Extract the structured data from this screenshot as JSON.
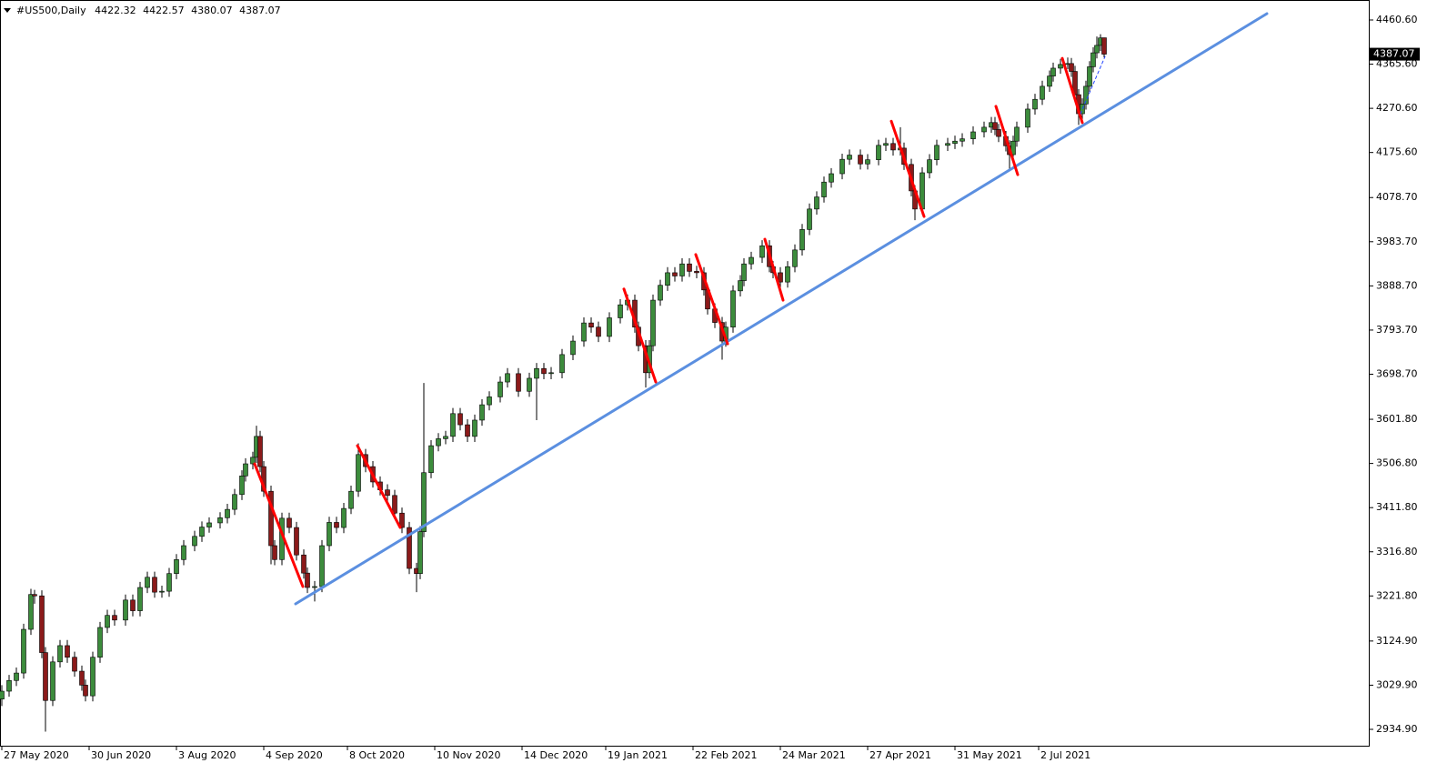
{
  "chart_data": {
    "type": "candlestick",
    "title": "#US500,Daily",
    "up_color": "#3c8c3c",
    "down_color": "#8b1a1a",
    "wick_color": "#000000",
    "grid": false,
    "xlim": [
      -0.5,
      375.75
    ],
    "ylim": [
      2899.7,
      4503.6
    ],
    "yticks": [
      {
        "value": 2934.9,
        "label": "2934.90"
      },
      {
        "value": 3029.9,
        "label": "3029.90"
      },
      {
        "value": 3124.9,
        "label": "3124.90"
      },
      {
        "value": 3221.8,
        "label": "3221.80"
      },
      {
        "value": 3316.8,
        "label": "3316.80"
      },
      {
        "value": 3411.8,
        "label": "3411.80"
      },
      {
        "value": 3506.8,
        "label": "3506.80"
      },
      {
        "value": 3601.8,
        "label": "3601.80"
      },
      {
        "value": 3698.7,
        "label": "3698.70"
      },
      {
        "value": 3793.7,
        "label": "3793.70"
      },
      {
        "value": 3888.7,
        "label": "3888.70"
      },
      {
        "value": 3983.7,
        "label": "3983.70"
      },
      {
        "value": 4078.7,
        "label": "4078.70"
      },
      {
        "value": 4175.6,
        "label": "4175.60"
      },
      {
        "value": 4270.6,
        "label": "4270.60"
      },
      {
        "value": 4365.6,
        "label": "4365.60"
      },
      {
        "value": 4460.6,
        "label": "4460.60"
      }
    ],
    "xticks": [
      {
        "value": 0,
        "label": "27 May 2020"
      },
      {
        "value": 24,
        "label": "30 Jun 2020"
      },
      {
        "value": 48,
        "label": "3 Aug 2020"
      },
      {
        "value": 72,
        "label": "4 Sep 2020"
      },
      {
        "value": 95,
        "label": "8 Oct 2020"
      },
      {
        "value": 119,
        "label": "10 Nov 2020"
      },
      {
        "value": 143,
        "label": "14 Dec 2020"
      },
      {
        "value": 166,
        "label": "19 Jan 2021"
      },
      {
        "value": 190,
        "label": "22 Feb 2021"
      },
      {
        "value": 214,
        "label": "24 Mar 2021"
      },
      {
        "value": 238,
        "label": "27 Apr 2021"
      },
      {
        "value": 262,
        "label": "31 May 2021"
      },
      {
        "value": 285,
        "label": "2 Jul 2021"
      }
    ],
    "x": [
      0,
      2,
      4,
      6,
      8,
      9,
      11,
      12,
      14,
      16,
      18,
      20,
      22,
      23,
      25,
      27,
      29,
      31,
      34,
      36,
      38,
      40,
      42,
      44,
      46,
      48,
      50,
      53,
      55,
      57,
      60,
      62,
      64,
      66,
      67,
      69,
      70,
      71,
      72,
      74,
      75,
      77,
      79,
      81,
      83,
      84,
      86,
      88,
      90,
      92,
      94,
      96,
      98,
      100,
      102,
      104,
      106,
      108,
      110,
      112,
      114,
      115,
      116,
      118,
      120,
      122,
      124,
      126,
      128,
      130,
      132,
      134,
      137,
      139,
      142,
      145,
      147,
      149,
      151,
      154,
      157,
      160,
      162,
      164,
      167,
      170,
      172,
      174,
      175,
      177,
      178,
      179,
      181,
      183,
      185,
      187,
      189,
      191,
      193,
      194,
      196,
      198,
      199,
      201,
      203,
      204,
      206,
      209,
      211,
      212,
      214,
      216,
      218,
      220,
      222,
      224,
      226,
      228,
      231,
      233,
      236,
      238,
      241,
      243,
      245,
      247,
      248,
      250,
      251,
      253,
      255,
      257,
      260,
      262,
      264,
      267,
      270,
      272,
      273,
      274,
      276,
      277,
      278,
      279,
      282,
      284,
      286,
      288,
      289,
      291,
      293,
      294,
      295,
      296,
      297,
      298,
      299,
      300,
      301,
      302,
      303
    ],
    "open": [
      3000,
      3017,
      3040,
      3056,
      3150,
      3225,
      3222,
      3100,
      2997,
      3080,
      3115,
      3090,
      3060,
      3030,
      3007,
      3090,
      3154,
      3180,
      3170,
      3213,
      3190,
      3240,
      3262,
      3230,
      3232,
      3270,
      3300,
      3330,
      3350,
      3370,
      3379,
      3390,
      3408,
      3440,
      3480,
      3506,
      3520,
      3565,
      3500,
      3447,
      3330,
      3300,
      3389,
      3369,
      3310,
      3271,
      3240,
      3242,
      3330,
      3380,
      3369,
      3410,
      3447,
      3526,
      3500,
      3467,
      3450,
      3438,
      3400,
      3369,
      3281,
      3270,
      3360,
      3487,
      3545,
      3560,
      3565,
      3614,
      3590,
      3565,
      3600,
      3633,
      3650,
      3682,
      3700,
      3662,
      3690,
      3711,
      3700,
      3702,
      3741,
      3770,
      3809,
      3800,
      3780,
      3820,
      3848,
      3858,
      3800,
      3760,
      3702,
      3760,
      3858,
      3890,
      3917,
      3910,
      3936,
      3920,
      3917,
      3880,
      3839,
      3810,
      3770,
      3800,
      3878,
      3900,
      3936,
      3950,
      3975,
      3930,
      3917,
      3897,
      3930,
      3966,
      4010,
      4054,
      4080,
      4112,
      4130,
      4161,
      4170,
      4151,
      4160,
      4191,
      4195,
      4181,
      4185,
      4150,
      4093,
      4054,
      4132,
      4160,
      4191,
      4195,
      4200,
      4205,
      4220,
      4230,
      4240,
      4225,
      4210,
      4190,
      4171,
      4200,
      4230,
      4269,
      4290,
      4318,
      4340,
      4357,
      4365,
      4367,
      4350,
      4300,
      4259,
      4280,
      4318,
      4360,
      4390,
      4406,
      4422.32
    ],
    "high": [
      3030,
      3052,
      3068,
      3162,
      3237,
      3235,
      3234,
      3112,
      3092,
      3127,
      3127,
      3102,
      3072,
      3042,
      3102,
      3166,
      3192,
      3192,
      3225,
      3225,
      3252,
      3274,
      3274,
      3244,
      3282,
      3312,
      3342,
      3362,
      3382,
      3391,
      3402,
      3420,
      3452,
      3492,
      3518,
      3532,
      3588,
      3577,
      3512,
      3459,
      3342,
      3401,
      3401,
      3381,
      3322,
      3283,
      3254,
      3342,
      3392,
      3392,
      3422,
      3459,
      3550,
      3538,
      3512,
      3479,
      3462,
      3450,
      3412,
      3381,
      3293,
      3372,
      3680,
      3557,
      3572,
      3577,
      3626,
      3626,
      3602,
      3612,
      3645,
      3662,
      3694,
      3712,
      3712,
      3702,
      3723,
      3723,
      3714,
      3753,
      3782,
      3821,
      3821,
      3812,
      3832,
      3860,
      3870,
      3870,
      3812,
      3772,
      3772,
      3870,
      3902,
      3929,
      3929,
      3948,
      3948,
      3932,
      3929,
      3892,
      3851,
      3822,
      3812,
      3890,
      3912,
      3948,
      3962,
      3987,
      3987,
      3942,
      3929,
      3942,
      3978,
      4022,
      4066,
      4092,
      4124,
      4142,
      4173,
      4182,
      4182,
      4172,
      4203,
      4207,
      4207,
      4230,
      4197,
      4162,
      4105,
      4144,
      4172,
      4203,
      4207,
      4212,
      4217,
      4232,
      4242,
      4252,
      4252,
      4237,
      4222,
      4202,
      4212,
      4242,
      4281,
      4302,
      4330,
      4352,
      4369,
      4377,
      4380,
      4379,
      4362,
      4312,
      4292,
      4330,
      4372,
      4402,
      4425,
      4430,
      4422.57
    ],
    "low": [
      2985,
      3005,
      3028,
      3044,
      3138,
      3205,
      3088,
      2930,
      2985,
      3068,
      3078,
      3048,
      3018,
      2995,
      2995,
      3078,
      3142,
      3158,
      3158,
      3178,
      3178,
      3228,
      3218,
      3218,
      3220,
      3258,
      3288,
      3318,
      3338,
      3358,
      3367,
      3378,
      3396,
      3428,
      3468,
      3494,
      3508,
      3488,
      3435,
      3290,
      3288,
      3288,
      3357,
      3298,
      3259,
      3228,
      3210,
      3230,
      3318,
      3357,
      3357,
      3398,
      3435,
      3488,
      3455,
      3438,
      3426,
      3388,
      3357,
      3269,
      3230,
      3258,
      3348,
      3475,
      3533,
      3548,
      3553,
      3578,
      3553,
      3553,
      3588,
      3621,
      3638,
      3670,
      3650,
      3650,
      3600,
      3688,
      3688,
      3690,
      3729,
      3758,
      3788,
      3768,
      3768,
      3808,
      3836,
      3788,
      3748,
      3670,
      3690,
      3748,
      3846,
      3878,
      3898,
      3898,
      3908,
      3905,
      3868,
      3827,
      3798,
      3730,
      3758,
      3788,
      3866,
      3888,
      3924,
      3938,
      3918,
      3905,
      3870,
      3885,
      3918,
      3954,
      3998,
      4042,
      4068,
      4100,
      4118,
      4149,
      4139,
      4139,
      4148,
      4179,
      4169,
      4169,
      4138,
      4081,
      4030,
      4042,
      4120,
      4148,
      4179,
      4183,
      4188,
      4193,
      4208,
      4218,
      4213,
      4198,
      4178,
      4140,
      4159,
      4188,
      4218,
      4257,
      4278,
      4306,
      4328,
      4345,
      4355,
      4338,
      4288,
      4235,
      4247,
      4268,
      4306,
      4348,
      4378,
      4394,
      4380.07
    ],
    "close": [
      3017,
      3040,
      3056,
      3150,
      3225,
      3222,
      3100,
      2997,
      3080,
      3115,
      3090,
      3060,
      3030,
      3007,
      3090,
      3154,
      3180,
      3170,
      3213,
      3190,
      3240,
      3262,
      3230,
      3232,
      3270,
      3300,
      3330,
      3350,
      3370,
      3379,
      3390,
      3408,
      3440,
      3480,
      3506,
      3520,
      3565,
      3500,
      3447,
      3330,
      3300,
      3389,
      3369,
      3310,
      3271,
      3240,
      3242,
      3330,
      3380,
      3369,
      3410,
      3447,
      3526,
      3500,
      3467,
      3450,
      3438,
      3400,
      3369,
      3281,
      3270,
      3360,
      3487,
      3545,
      3560,
      3565,
      3614,
      3590,
      3565,
      3600,
      3633,
      3650,
      3682,
      3700,
      3662,
      3690,
      3711,
      3700,
      3702,
      3741,
      3770,
      3809,
      3800,
      3780,
      3820,
      3848,
      3858,
      3800,
      3760,
      3702,
      3760,
      3858,
      3890,
      3917,
      3910,
      3936,
      3920,
      3917,
      3880,
      3839,
      3810,
      3770,
      3800,
      3878,
      3900,
      3936,
      3950,
      3975,
      3930,
      3917,
      3897,
      3930,
      3966,
      4010,
      4054,
      4080,
      4112,
      4130,
      4161,
      4170,
      4151,
      4160,
      4191,
      4195,
      4181,
      4185,
      4150,
      4093,
      4054,
      4132,
      4160,
      4191,
      4195,
      4200,
      4205,
      4220,
      4230,
      4240,
      4225,
      4210,
      4190,
      4171,
      4200,
      4230,
      4269,
      4290,
      4318,
      4340,
      4357,
      4365,
      4367,
      4350,
      4300,
      4259,
      4280,
      4318,
      4360,
      4390,
      4406,
      4422,
      4387.07
    ],
    "trendlines": [
      {
        "color": "#5b8fe0",
        "width": 3,
        "style": "solid",
        "x": [
          80.75,
          347.75
        ],
        "y": [
          3204.8,
          4474.3
        ]
      },
      {
        "color": "#ff0000",
        "width": 3,
        "style": "solid",
        "x": [
          69.5,
          82.75
        ],
        "y": [
          3506,
          3242
        ]
      },
      {
        "color": "#ff0000",
        "width": 3,
        "style": "solid",
        "x": [
          97.75,
          109.5
        ],
        "y": [
          3545,
          3369
        ]
      },
      {
        "color": "#ff0000",
        "width": 3,
        "style": "solid",
        "x": [
          171,
          179.75
        ],
        "y": [
          3882,
          3682
        ]
      },
      {
        "color": "#ff0000",
        "width": 3,
        "style": "solid",
        "x": [
          190.75,
          199.5
        ],
        "y": [
          3956,
          3764
        ]
      },
      {
        "color": "#ff0000",
        "width": 3,
        "style": "solid",
        "x": [
          209.75,
          214.75
        ],
        "y": [
          3989,
          3858
        ]
      },
      {
        "color": "#ff0000",
        "width": 3,
        "style": "solid",
        "x": [
          244.5,
          253.5
        ],
        "y": [
          4243,
          4038
        ]
      },
      {
        "color": "#ff0000",
        "width": 3,
        "style": "solid",
        "x": [
          273.25,
          279.25
        ],
        "y": [
          4275,
          4128
        ]
      },
      {
        "color": "#ff0000",
        "width": 3,
        "style": "solid",
        "x": [
          291.5,
          297
        ],
        "y": [
          4378,
          4240
        ]
      },
      {
        "color": "#2244ff",
        "width": 1,
        "style": "dashed",
        "x": [
          296.5,
          303.25
        ],
        "y": [
          4259,
          4382
        ]
      }
    ]
  }
}
